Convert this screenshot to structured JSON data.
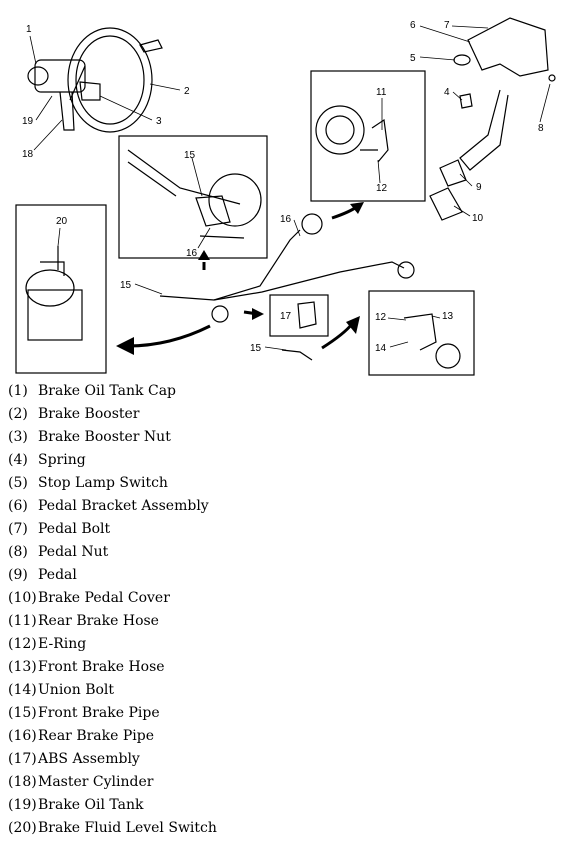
{
  "diagram": {
    "callouts": {
      "c1": "1",
      "c2": "2",
      "c3": "3",
      "c4": "4",
      "c5": "5",
      "c6": "6",
      "c7": "7",
      "c8": "8",
      "c9": "9",
      "c10": "10",
      "c11": "11",
      "c12a": "12",
      "c12b": "12",
      "c13": "13",
      "c14": "14",
      "c15a": "15",
      "c15b": "15",
      "c15c": "15",
      "c16a": "16",
      "c16b": "16",
      "c17": "17",
      "c18": "18",
      "c19": "19",
      "c20": "20"
    }
  },
  "legend": [
    {
      "num": "(1)",
      "label": "Brake Oil Tank Cap"
    },
    {
      "num": "(2)",
      "label": "Brake Booster"
    },
    {
      "num": "(3)",
      "label": "Brake Booster Nut"
    },
    {
      "num": "(4)",
      "label": "Spring"
    },
    {
      "num": "(5)",
      "label": "Stop Lamp Switch"
    },
    {
      "num": "(6)",
      "label": "Pedal Bracket Assembly"
    },
    {
      "num": "(7)",
      "label": "Pedal Bolt"
    },
    {
      "num": "(8)",
      "label": "Pedal Nut"
    },
    {
      "num": "(9)",
      "label": "Pedal"
    },
    {
      "num": "(10)",
      "label": "Brake Pedal Cover"
    },
    {
      "num": "(11)",
      "label": "Rear Brake Hose"
    },
    {
      "num": "(12)",
      "label": "E-Ring"
    },
    {
      "num": "(13)",
      "label": "Front Brake Hose"
    },
    {
      "num": "(14)",
      "label": "Union Bolt"
    },
    {
      "num": "(15)",
      "label": "Front Brake Pipe"
    },
    {
      "num": "(16)",
      "label": "Rear Brake Pipe"
    },
    {
      "num": "(17)",
      "label": "ABS Assembly"
    },
    {
      "num": "(18)",
      "label": "Master Cylinder"
    },
    {
      "num": "(19)",
      "label": "Brake Oil Tank"
    },
    {
      "num": "(20)",
      "label": "Brake Fluid Level Switch"
    }
  ]
}
